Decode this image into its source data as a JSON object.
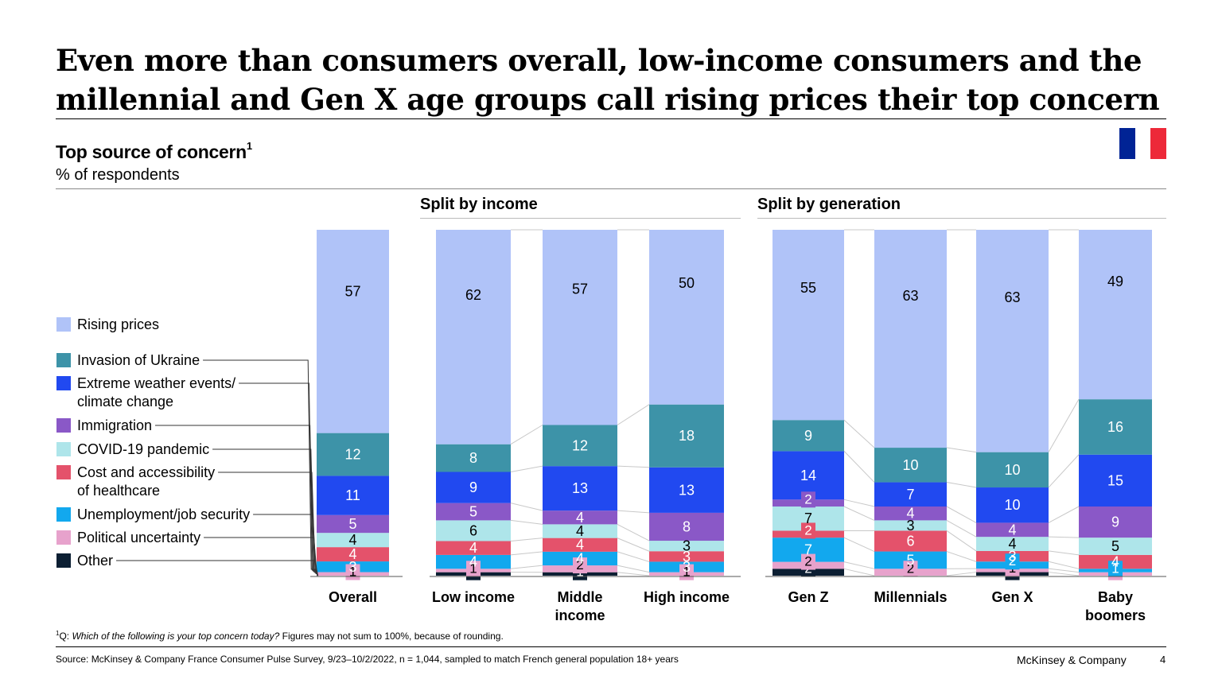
{
  "title": "Even more than consumers overall, low-income consumers and the millennial and Gen X age groups call rising prices their top concern",
  "subtitle": "Top source of concern",
  "subtitle_footnote_mark": "1",
  "unit_label": "% of respondents",
  "flag_colors": {
    "blue": "#002395",
    "white": "#ffffff",
    "red": "#ed2939"
  },
  "groups": {
    "income": "Split by income",
    "generation": "Split by generation"
  },
  "footnote": {
    "mark": "1",
    "question_prefix": "Q: ",
    "question": "Which of the following is your top concern today?",
    "note": " Figures may not sum to 100%, because of rounding."
  },
  "source": "Source: McKinsey & Company France Consumer Pulse Survey, 9/23–10/2/2022, n = 1,044, sampled to match French general population 18+ years",
  "brand": "McKinsey & Company",
  "page_number": "4",
  "chart_data": {
    "type": "stacked-bar",
    "ylabel": "% of respondents",
    "legend_position": "left",
    "stack_order_bottom_to_top": [
      "Other",
      "Political uncertainty",
      "Unemployment/job security",
      "Cost and accessibility of healthcare",
      "COVID-19 pandemic",
      "Immigration",
      "Extreme weather events/ climate change",
      "Invasion of Ukraine",
      "Rising prices"
    ],
    "series": [
      {
        "name": "Rising prices",
        "color": "#b0c3f8",
        "label_lines": [
          "Rising prices"
        ]
      },
      {
        "name": "Invasion of Ukraine",
        "color": "#3d93a8",
        "label_lines": [
          "Invasion of Ukraine"
        ]
      },
      {
        "name": "Extreme weather events/ climate change",
        "color": "#2149f0",
        "label_lines": [
          "Extreme weather events/",
          "climate change"
        ]
      },
      {
        "name": "Immigration",
        "color": "#8a58c7",
        "label_lines": [
          "Immigration"
        ]
      },
      {
        "name": "COVID-19 pandemic",
        "color": "#aee5ea",
        "label_lines": [
          "COVID-19 pandemic"
        ]
      },
      {
        "name": "Cost and accessibility of healthcare",
        "color": "#e4526b",
        "label_lines": [
          "Cost and accessibility",
          "of healthcare"
        ]
      },
      {
        "name": "Unemployment/job security",
        "color": "#12a8ee",
        "label_lines": [
          "Unemployment/job security"
        ]
      },
      {
        "name": "Political uncertainty",
        "color": "#e7a2cc",
        "label_lines": [
          "Political uncertainty"
        ]
      },
      {
        "name": "Other",
        "color": "#0c1f33",
        "label_lines": [
          "Other"
        ]
      }
    ],
    "bars": [
      {
        "category": "Overall",
        "label_lines": [
          "Overall"
        ],
        "group": "overall",
        "values": {
          "Rising prices": 57,
          "Invasion of Ukraine": 12,
          "Extreme weather events/ climate change": 11,
          "Immigration": 5,
          "COVID-19 pandemic": 4,
          "Cost and accessibility of healthcare": 4,
          "Unemployment/job security": 3,
          "Political uncertainty": 1,
          "Other": 0
        }
      },
      {
        "category": "Low income",
        "label_lines": [
          "Low income"
        ],
        "group": "income",
        "values": {
          "Rising prices": 62,
          "Invasion of Ukraine": 8,
          "Extreme weather events/ climate change": 9,
          "Immigration": 5,
          "COVID-19 pandemic": 6,
          "Cost and accessibility of healthcare": 4,
          "Unemployment/job security": 4,
          "Political uncertainty": 1,
          "Other": 1
        }
      },
      {
        "category": "Middle income",
        "label_lines": [
          "Middle",
          "income"
        ],
        "group": "income",
        "values": {
          "Rising prices": 57,
          "Invasion of Ukraine": 12,
          "Extreme weather events/ climate change": 13,
          "Immigration": 4,
          "COVID-19 pandemic": 4,
          "Cost and accessibility of healthcare": 4,
          "Unemployment/job security": 4,
          "Political uncertainty": 2,
          "Other": 1
        }
      },
      {
        "category": "High income",
        "label_lines": [
          "High income"
        ],
        "group": "income",
        "values": {
          "Rising prices": 50,
          "Invasion of Ukraine": 18,
          "Extreme weather events/ climate change": 13,
          "Immigration": 8,
          "COVID-19 pandemic": 3,
          "Cost and accessibility of healthcare": 3,
          "Unemployment/job security": 3,
          "Political uncertainty": 1,
          "Other": 0
        }
      },
      {
        "category": "Gen Z",
        "label_lines": [
          "Gen Z"
        ],
        "group": "generation",
        "values": {
          "Rising prices": 55,
          "Invasion of Ukraine": 9,
          "Extreme weather events/ climate change": 14,
          "Immigration": 2,
          "COVID-19 pandemic": 7,
          "Cost and accessibility of healthcare": 2,
          "Unemployment/job security": 7,
          "Political uncertainty": 2,
          "Other": 2
        }
      },
      {
        "category": "Millennials",
        "label_lines": [
          "Millennials"
        ],
        "group": "generation",
        "values": {
          "Rising prices": 63,
          "Invasion of Ukraine": 10,
          "Extreme weather events/ climate change": 7,
          "Immigration": 4,
          "COVID-19 pandemic": 3,
          "Cost and accessibility of healthcare": 6,
          "Unemployment/job security": 5,
          "Political uncertainty": 2,
          "Other": 0
        }
      },
      {
        "category": "Gen X",
        "label_lines": [
          "Gen X"
        ],
        "group": "generation",
        "values": {
          "Rising prices": 63,
          "Invasion of Ukraine": 10,
          "Extreme weather events/ climate change": 10,
          "Immigration": 4,
          "COVID-19 pandemic": 4,
          "Cost and accessibility of healthcare": 3,
          "Unemployment/job security": 2,
          "Political uncertainty": 1,
          "Other": 1
        }
      },
      {
        "category": "Baby boomers",
        "label_lines": [
          "Baby",
          "boomers"
        ],
        "group": "generation",
        "values": {
          "Rising prices": 49,
          "Invasion of Ukraine": 16,
          "Extreme weather events/ climate change": 15,
          "Immigration": 9,
          "COVID-19 pandemic": 5,
          "Cost and accessibility of healthcare": 4,
          "Unemployment/job security": 1,
          "Political uncertainty": 1,
          "Other": 0
        }
      }
    ]
  }
}
